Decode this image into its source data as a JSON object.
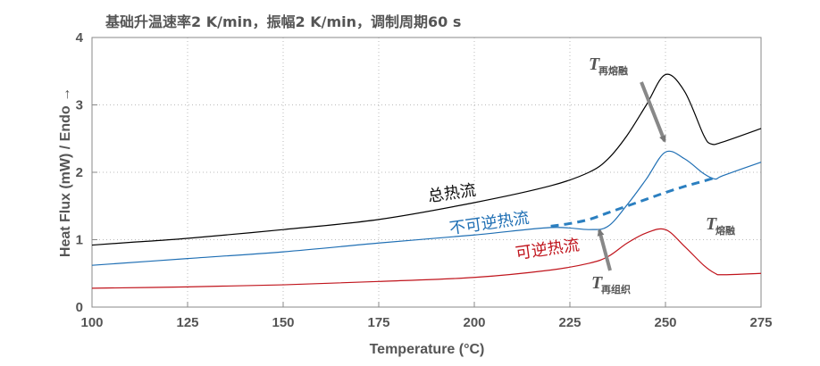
{
  "chart_data": {
    "type": "line",
    "title": "基础升温速率2 K/min，振幅2 K/min，调制周期60 s",
    "xlabel": "Temperature (°C)",
    "ylabel": "Heat Flux (mW) / Endo →",
    "xlim": [
      100,
      275
    ],
    "ylim": [
      0,
      4
    ],
    "xticks": [
      100,
      125,
      150,
      175,
      200,
      225,
      250,
      275
    ],
    "yticks": [
      0,
      1,
      2,
      3,
      4
    ],
    "grid": "dotted",
    "series": [
      {
        "name": "总热流",
        "color": "#000000",
        "style": "solid",
        "x": [
          100,
          110,
          125,
          150,
          175,
          200,
          220,
          230,
          235,
          240,
          245,
          250,
          255,
          260,
          262,
          265,
          275
        ],
        "y": [
          0.92,
          0.96,
          1.02,
          1.15,
          1.3,
          1.55,
          1.8,
          2.0,
          2.2,
          2.55,
          3.0,
          3.45,
          3.2,
          2.55,
          2.42,
          2.45,
          2.65
        ]
      },
      {
        "name": "不可逆热流",
        "color": "#1f6fb4",
        "style": "solid",
        "x": [
          100,
          125,
          150,
          175,
          200,
          220,
          230,
          235,
          240,
          245,
          250,
          255,
          260,
          263,
          265,
          275
        ],
        "y": [
          0.62,
          0.72,
          0.82,
          0.95,
          1.07,
          1.18,
          1.15,
          1.2,
          1.52,
          1.9,
          2.3,
          2.2,
          1.98,
          1.9,
          1.95,
          2.15
        ]
      },
      {
        "name": "可逆热流",
        "color": "#c0141c",
        "style": "solid",
        "x": [
          100,
          125,
          150,
          175,
          200,
          220,
          230,
          235,
          240,
          245,
          250,
          255,
          260,
          263,
          265,
          275
        ],
        "y": [
          0.28,
          0.3,
          0.33,
          0.38,
          0.44,
          0.55,
          0.65,
          0.75,
          0.95,
          1.1,
          1.15,
          0.9,
          0.62,
          0.5,
          0.48,
          0.5
        ]
      },
      {
        "name": "",
        "color": "#2b7fc0",
        "style": "dashed",
        "x": [
          220,
          225,
          230,
          235,
          240,
          245,
          250,
          255,
          260,
          263
        ],
        "y": [
          1.2,
          1.24,
          1.3,
          1.4,
          1.5,
          1.6,
          1.7,
          1.79,
          1.87,
          1.92
        ]
      }
    ],
    "annotations": {
      "total": "总热流",
      "nonrev": "不可逆热流",
      "rev": "可逆热流",
      "t_remelt_sym": "T",
      "t_remelt_sub": "再熔融",
      "t_melt_sym": "T",
      "t_melt_sub": "熔融",
      "t_reorg_sym": "T",
      "t_reorg_sub": "再组织"
    }
  }
}
